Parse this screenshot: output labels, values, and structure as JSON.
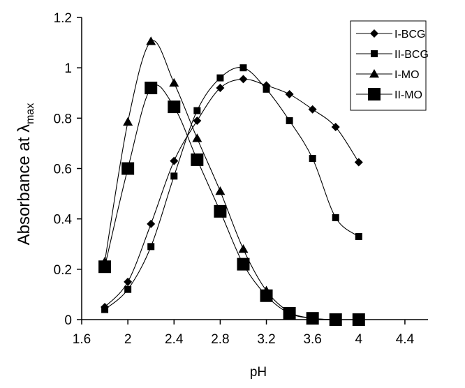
{
  "chart_data": {
    "type": "line",
    "title": "",
    "xlabel": "pH",
    "ylabel": "Absorbance at λ",
    "ylabel_sub": "max",
    "xlim": [
      1.6,
      4.6
    ],
    "ylim": [
      0,
      1.2
    ],
    "xticks": [
      1.6,
      2,
      2.4,
      2.8,
      3.2,
      3.6,
      4,
      4.4
    ],
    "xtick_labels": [
      "1.6",
      "2",
      "2.4",
      "2.8",
      "3.2",
      "3.6",
      "4",
      "4.4"
    ],
    "yticks": [
      0,
      0.2,
      0.4,
      0.6,
      0.8,
      1,
      1.2
    ],
    "ytick_labels": [
      "0",
      "0.2",
      "0.4",
      "0.6",
      "0.8",
      "1",
      "1.2"
    ],
    "grid": false,
    "legend_position": "top-right",
    "series": [
      {
        "name": "I-BCG",
        "marker": "diamond",
        "x": [
          1.8,
          2.0,
          2.2,
          2.4,
          2.6,
          2.8,
          3.0,
          3.2,
          3.4,
          3.6,
          3.8,
          4.0
        ],
        "y": [
          0.05,
          0.15,
          0.38,
          0.63,
          0.79,
          0.92,
          0.955,
          0.93,
          0.895,
          0.835,
          0.765,
          0.625
        ]
      },
      {
        "name": "II-BCG",
        "marker": "square-small",
        "x": [
          1.8,
          2.0,
          2.2,
          2.4,
          2.6,
          2.8,
          3.0,
          3.2,
          3.4,
          3.6,
          3.8,
          4.0
        ],
        "y": [
          0.04,
          0.12,
          0.29,
          0.57,
          0.83,
          0.96,
          1.0,
          0.915,
          0.79,
          0.64,
          0.405,
          0.33
        ]
      },
      {
        "name": "I-MO",
        "marker": "triangle",
        "x": [
          1.8,
          2.0,
          2.2,
          2.4,
          2.6,
          2.8,
          3.0,
          3.2,
          3.4,
          3.6,
          3.8,
          4.0
        ],
        "y": [
          0.23,
          0.785,
          1.105,
          0.94,
          0.72,
          0.51,
          0.28,
          0.115,
          0.03,
          0.005,
          0.0,
          0.0
        ]
      },
      {
        "name": "II-MO",
        "marker": "square-large",
        "x": [
          1.8,
          2.0,
          2.2,
          2.4,
          2.6,
          2.8,
          3.0,
          3.2,
          3.4,
          3.6,
          3.8,
          4.0
        ],
        "y": [
          0.21,
          0.6,
          0.92,
          0.845,
          0.635,
          0.43,
          0.22,
          0.095,
          0.025,
          0.005,
          0.0,
          0.0
        ]
      }
    ]
  }
}
